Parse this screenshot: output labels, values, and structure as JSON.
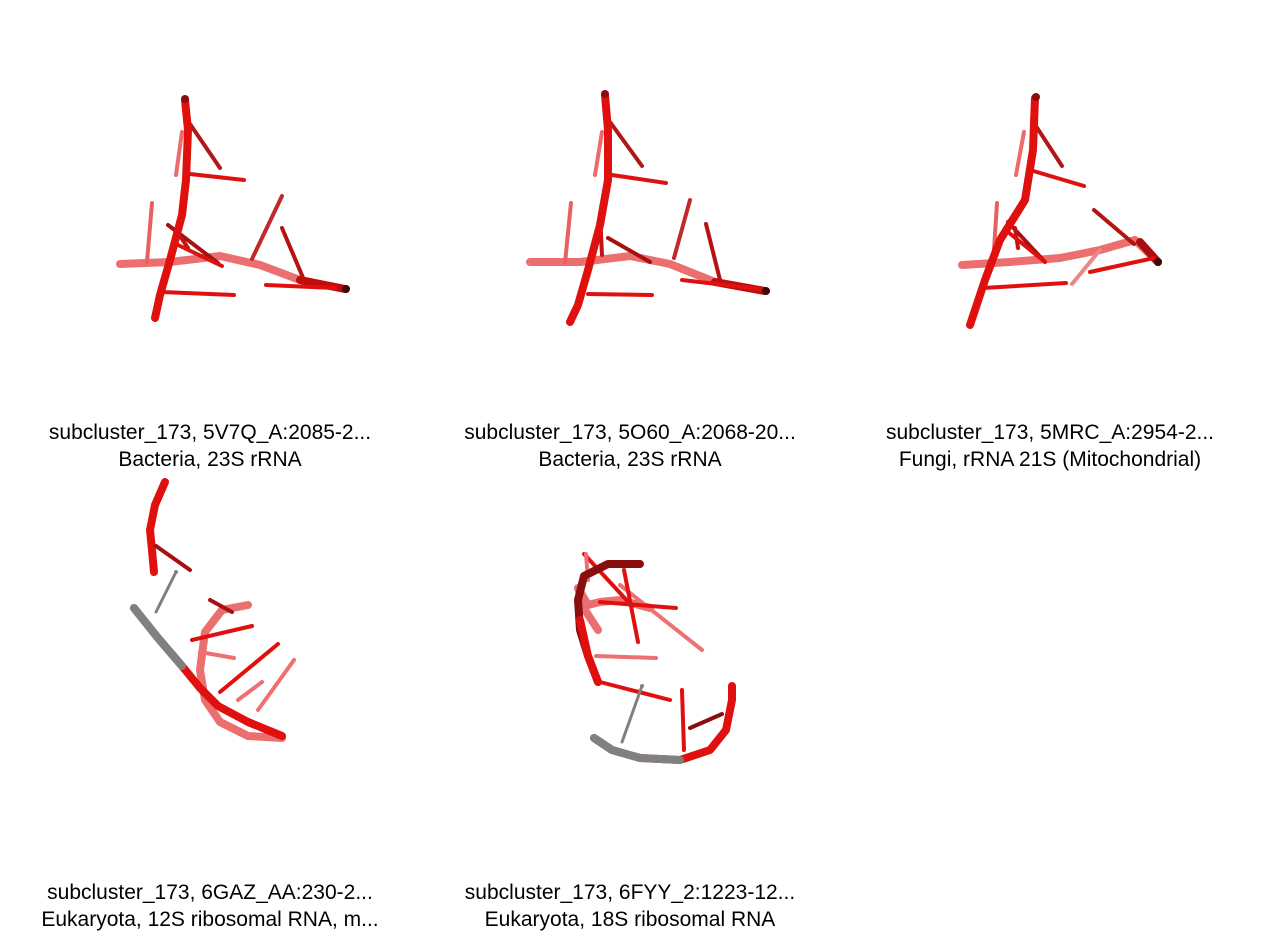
{
  "colors": {
    "red": "#e0100f",
    "dark_red": "#8b0e0e",
    "pink": "#ec6f6f",
    "gray": "#808080"
  },
  "panels": [
    {
      "line1": "subcluster_173, 5V7Q_A:2085-2...",
      "line2": "Bacteria, 23S rRNA"
    },
    {
      "line1": "subcluster_173, 5O60_A:2068-20...",
      "line2": "Bacteria, 23S rRNA"
    },
    {
      "line1": "subcluster_173, 5MRC_A:2954-2...",
      "line2": "Fungi, rRNA 21S (Mitochondrial)"
    },
    {
      "line1": "subcluster_173, 6GAZ_AA:230-2...",
      "line2": "Eukaryota, 12S ribosomal RNA, m..."
    },
    {
      "line1": "subcluster_173, 6FYY_2:1223-12...",
      "line2": "Eukaryota, 18S ribosomal RNA"
    }
  ]
}
